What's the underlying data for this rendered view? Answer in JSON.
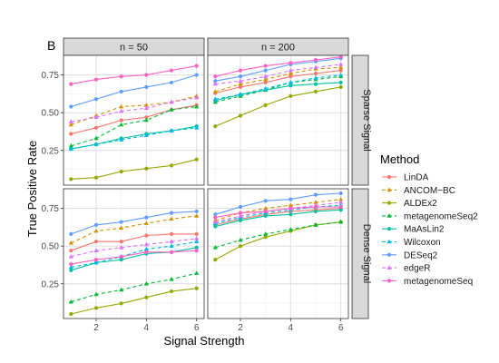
{
  "chart_data": {
    "type": "line",
    "title": "",
    "panel_label": "B",
    "xlabel": "Signal Strength",
    "ylabel": "True Positive Rate",
    "x": [
      1,
      2,
      3,
      4,
      5,
      6
    ],
    "xticks": [
      2,
      4,
      6
    ],
    "xticklabels": [
      "2",
      "4",
      "6"
    ],
    "xlim": [
      0.7,
      6.3
    ],
    "ylim": [
      0.02,
      0.88
    ],
    "yticks": [
      0.25,
      0.5,
      0.75
    ],
    "yticklabels": [
      "0.25",
      "0.50",
      "0.75"
    ],
    "grid": true,
    "legend_position": "right",
    "legend_title": "Method",
    "columns": [
      "n = 50",
      "n = 200"
    ],
    "rows": [
      "Sparse Signal",
      "Dense Signal"
    ],
    "series": [
      {
        "name": "LinDA",
        "color": "#F8766D",
        "dashed": false,
        "marker": "circle"
      },
      {
        "name": "ANCOM−BC",
        "color": "#D39200",
        "dashed": true,
        "marker": "triangle"
      },
      {
        "name": "ALDEx2",
        "color": "#93AA00",
        "dashed": false,
        "marker": "circle"
      },
      {
        "name": "metagenomeSeq2",
        "color": "#00BA38",
        "dashed": true,
        "marker": "triangle"
      },
      {
        "name": "MaAsLin2",
        "color": "#00C19F",
        "dashed": false,
        "marker": "circle"
      },
      {
        "name": "Wilcoxon",
        "color": "#00B9E3",
        "dashed": true,
        "marker": "triangle"
      },
      {
        "name": "DESeq2",
        "color": "#619CFF",
        "dashed": false,
        "marker": "circle"
      },
      {
        "name": "edgeR",
        "color": "#DB72FB",
        "dashed": true,
        "marker": "triangle"
      },
      {
        "name": "metagenomeSeq",
        "color": "#FF61C3",
        "dashed": false,
        "marker": "circle"
      }
    ],
    "panels": [
      {
        "row": "Sparse Signal",
        "col": "n = 50",
        "values": {
          "LinDA": [
            0.36,
            0.4,
            0.45,
            0.47,
            0.52,
            0.55
          ],
          "ANCOM−BC": [
            0.42,
            0.48,
            0.54,
            0.55,
            0.57,
            0.61
          ],
          "ALDEx2": [
            0.06,
            0.07,
            0.11,
            0.13,
            0.15,
            0.19
          ],
          "metagenomeSeq2": [
            0.28,
            0.33,
            0.42,
            0.45,
            0.52,
            0.54
          ],
          "MaAsLin2": [
            0.26,
            0.29,
            0.33,
            0.36,
            0.38,
            0.41
          ],
          "Wilcoxon": [
            0.26,
            0.29,
            0.32,
            0.35,
            0.38,
            0.4
          ],
          "DESeq2": [
            0.54,
            0.59,
            0.64,
            0.67,
            0.7,
            0.75
          ],
          "edgeR": [
            0.44,
            0.47,
            0.51,
            0.53,
            0.57,
            0.6
          ],
          "metagenomeSeq": [
            0.69,
            0.72,
            0.74,
            0.75,
            0.78,
            0.81
          ]
        }
      },
      {
        "row": "Sparse Signal",
        "col": "n = 200",
        "values": {
          "LinDA": [
            0.63,
            0.67,
            0.7,
            0.74,
            0.76,
            0.78
          ],
          "ANCOM−BC": [
            0.64,
            0.69,
            0.72,
            0.76,
            0.79,
            0.8
          ],
          "ALDEx2": [
            0.41,
            0.48,
            0.55,
            0.61,
            0.64,
            0.67
          ],
          "metagenomeSeq2": [
            0.57,
            0.61,
            0.65,
            0.7,
            0.72,
            0.74
          ],
          "MaAsLin2": [
            0.58,
            0.62,
            0.65,
            0.68,
            0.69,
            0.7
          ],
          "Wilcoxon": [
            0.59,
            0.62,
            0.66,
            0.7,
            0.73,
            0.75
          ],
          "DESeq2": [
            0.71,
            0.74,
            0.78,
            0.82,
            0.84,
            0.86
          ],
          "edgeR": [
            0.69,
            0.71,
            0.74,
            0.78,
            0.8,
            0.82
          ],
          "metagenomeSeq": [
            0.74,
            0.78,
            0.81,
            0.83,
            0.85,
            0.87
          ]
        }
      },
      {
        "row": "Dense Signal",
        "col": "n = 50",
        "values": {
          "LinDA": [
            0.47,
            0.53,
            0.53,
            0.57,
            0.58,
            0.58
          ],
          "ANCOM−BC": [
            0.52,
            0.6,
            0.62,
            0.65,
            0.68,
            0.7
          ],
          "ALDEx2": [
            0.05,
            0.09,
            0.12,
            0.16,
            0.2,
            0.22
          ],
          "metagenomeSeq2": [
            0.13,
            0.18,
            0.21,
            0.25,
            0.28,
            0.32
          ],
          "MaAsLin2": [
            0.34,
            0.39,
            0.41,
            0.45,
            0.46,
            0.49
          ],
          "Wilcoxon": [
            0.36,
            0.39,
            0.43,
            0.48,
            0.5,
            0.53
          ],
          "DESeq2": [
            0.58,
            0.64,
            0.66,
            0.69,
            0.72,
            0.73
          ],
          "edgeR": [
            0.43,
            0.47,
            0.49,
            0.51,
            0.53,
            0.55
          ],
          "metagenomeSeq": [
            0.38,
            0.41,
            0.43,
            0.46,
            0.46,
            0.47
          ]
        }
      },
      {
        "row": "Dense Signal",
        "col": "n = 200",
        "values": {
          "LinDA": [
            0.64,
            0.68,
            0.71,
            0.73,
            0.74,
            0.75
          ],
          "ANCOM−BC": [
            0.67,
            0.72,
            0.75,
            0.77,
            0.79,
            0.81
          ],
          "ALDEx2": [
            0.41,
            0.5,
            0.56,
            0.6,
            0.64,
            0.66
          ],
          "metagenomeSeq2": [
            0.49,
            0.54,
            0.58,
            0.61,
            0.64,
            0.66
          ],
          "MaAsLin2": [
            0.63,
            0.67,
            0.7,
            0.71,
            0.73,
            0.74
          ],
          "Wilcoxon": [
            0.65,
            0.69,
            0.72,
            0.74,
            0.76,
            0.77
          ],
          "DESeq2": [
            0.71,
            0.76,
            0.8,
            0.81,
            0.84,
            0.85
          ],
          "edgeR": [
            0.66,
            0.7,
            0.73,
            0.75,
            0.77,
            0.79
          ],
          "metagenomeSeq": [
            0.69,
            0.72,
            0.73,
            0.75,
            0.76,
            0.76
          ]
        }
      }
    ]
  }
}
